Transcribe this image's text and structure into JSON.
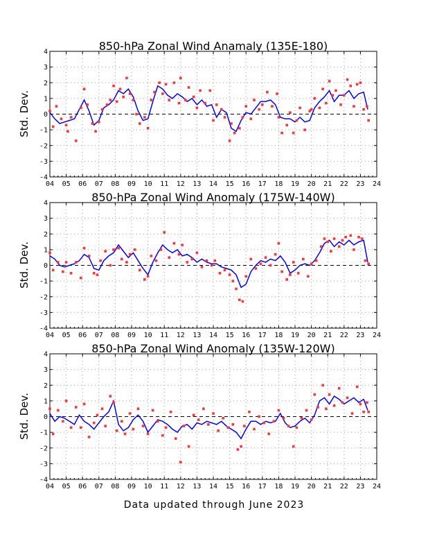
{
  "footer": "Data updated through June 2023",
  "colors": {
    "line": "#0000ff",
    "points": "#ff3333",
    "grid": "#999999"
  },
  "chart_data": [
    {
      "type": "line",
      "title": "850-hPa Zonal Wind Anamaly (135E-180)",
      "ylabel": "Std. Dev.",
      "xlim": [
        2004,
        2024
      ],
      "ylim": [
        -4,
        4
      ],
      "xticks": [
        "04",
        "05",
        "06",
        "07",
        "08",
        "09",
        "10",
        "11",
        "12",
        "13",
        "14",
        "15",
        "16",
        "17",
        "18",
        "19",
        "20",
        "21",
        "22",
        "23",
        "24"
      ],
      "yticks": [
        -4,
        -3,
        -2,
        -1,
        0,
        1,
        2,
        3,
        4
      ],
      "grid": true,
      "series": [
        {
          "style": "line",
          "x": [
            2004.0,
            2004.3,
            2004.6,
            2004.9,
            2005.2,
            2005.5,
            2005.8,
            2006.1,
            2006.4,
            2006.7,
            2007.0,
            2007.3,
            2007.6,
            2007.9,
            2008.2,
            2008.5,
            2008.8,
            2009.1,
            2009.4,
            2009.7,
            2010.0,
            2010.3,
            2010.6,
            2010.9,
            2011.2,
            2011.5,
            2011.8,
            2012.1,
            2012.4,
            2012.7,
            2013.0,
            2013.3,
            2013.6,
            2013.9,
            2014.2,
            2014.5,
            2014.8,
            2015.1,
            2015.4,
            2015.7,
            2016.0,
            2016.3,
            2016.6,
            2016.9,
            2017.2,
            2017.5,
            2017.8,
            2018.1,
            2018.4,
            2018.7,
            2019.0,
            2019.3,
            2019.6,
            2019.9,
            2020.2,
            2020.5,
            2020.8,
            2021.1,
            2021.4,
            2021.7,
            2022.0,
            2022.3,
            2022.6,
            2022.9,
            2023.2,
            2023.45
          ],
          "y": [
            0.1,
            -0.3,
            -0.6,
            -0.5,
            -0.4,
            -0.3,
            0.3,
            0.9,
            0.2,
            -0.7,
            -0.4,
            0.4,
            0.6,
            0.9,
            1.5,
            1.3,
            1.6,
            1.1,
            0.2,
            -0.4,
            -0.3,
            0.8,
            1.8,
            1.6,
            1.2,
            1.0,
            1.3,
            1.1,
            0.8,
            1.0,
            0.6,
            0.9,
            0.5,
            0.6,
            -0.2,
            0.3,
            0.1,
            -0.9,
            -1.1,
            -0.4,
            0.1,
            0.0,
            0.4,
            0.8,
            0.8,
            0.9,
            0.6,
            -0.2,
            -0.3,
            -0.3,
            -0.5,
            -0.2,
            -0.5,
            -0.4,
            0.4,
            0.8,
            1.1,
            1.5,
            0.8,
            1.2,
            1.2,
            1.5,
            1.0,
            1.3,
            1.4,
            0.3
          ]
        },
        {
          "style": "points",
          "x": [
            2004.0,
            2004.2,
            2004.4,
            2004.7,
            2005.0,
            2005.1,
            2005.3,
            2005.6,
            2005.9,
            2006.1,
            2006.3,
            2006.6,
            2006.8,
            2007.0,
            2007.2,
            2007.5,
            2007.7,
            2007.9,
            2008.1,
            2008.3,
            2008.5,
            2008.7,
            2008.9,
            2009.1,
            2009.3,
            2009.5,
            2009.8,
            2010.0,
            2010.2,
            2010.4,
            2010.7,
            2010.9,
            2011.1,
            2011.3,
            2011.6,
            2011.9,
            2012.0,
            2012.3,
            2012.5,
            2012.8,
            2013.0,
            2013.2,
            2013.5,
            2013.8,
            2014.0,
            2014.2,
            2014.5,
            2014.7,
            2015.0,
            2015.1,
            2015.3,
            2015.6,
            2015.8,
            2016.0,
            2016.3,
            2016.5,
            2016.8,
            2017.0,
            2017.3,
            2017.6,
            2017.9,
            2018.0,
            2018.2,
            2018.5,
            2018.7,
            2018.9,
            2019.1,
            2019.3,
            2019.6,
            2019.9,
            2020.0,
            2020.2,
            2020.5,
            2020.7,
            2020.9,
            2021.1,
            2021.3,
            2021.5,
            2021.8,
            2022.0,
            2022.2,
            2022.4,
            2022.6,
            2022.8,
            2023.0,
            2023.2,
            2023.4,
            2023.5
          ],
          "y": [
            0.2,
            -0.8,
            0.5,
            -0.3,
            -0.7,
            -1.1,
            -0.2,
            -1.7,
            0.4,
            1.6,
            0.6,
            -0.6,
            -1.1,
            -0.5,
            0.3,
            0.6,
            0.9,
            1.8,
            0.8,
            1.6,
            1.1,
            2.3,
            1.3,
            0.9,
            0.0,
            -0.6,
            -0.2,
            -0.9,
            0.9,
            1.4,
            2.0,
            1.3,
            1.9,
            0.9,
            2.0,
            0.7,
            2.3,
            0.9,
            1.7,
            1.1,
            0.4,
            1.5,
            0.7,
            1.5,
            -0.4,
            0.6,
            0.3,
            -0.2,
            -1.7,
            -0.6,
            -1.2,
            -0.9,
            -0.2,
            0.5,
            -0.3,
            0.9,
            0.3,
            0.6,
            1.4,
            0.5,
            1.3,
            -0.2,
            -1.2,
            -0.7,
            0.1,
            -1.2,
            -0.4,
            0.4,
            -1.0,
            0.2,
            0.3,
            1.0,
            0.4,
            1.6,
            0.7,
            2.1,
            1.2,
            1.5,
            0.6,
            1.2,
            2.2,
            1.8,
            0.5,
            1.9,
            2.0,
            0.3,
            0.5,
            -0.4
          ]
        }
      ]
    },
    {
      "type": "line",
      "title": "850-hPa Zonal Wind Anomaly (175W-140W)",
      "ylabel": "Std. Dev.",
      "xlim": [
        2004,
        2024
      ],
      "ylim": [
        -4,
        4
      ],
      "xticks": [
        "04",
        "05",
        "06",
        "07",
        "08",
        "09",
        "10",
        "11",
        "12",
        "13",
        "14",
        "15",
        "16",
        "17",
        "18",
        "19",
        "20",
        "21",
        "22",
        "23",
        "24"
      ],
      "yticks": [
        -4,
        -3,
        -2,
        -1,
        0,
        1,
        2,
        3,
        4
      ],
      "grid": true,
      "series": [
        {
          "style": "line",
          "x": [
            2004.0,
            2004.3,
            2004.6,
            2004.9,
            2005.2,
            2005.5,
            2005.8,
            2006.1,
            2006.4,
            2006.7,
            2007.0,
            2007.3,
            2007.6,
            2007.9,
            2008.2,
            2008.5,
            2008.8,
            2009.1,
            2009.4,
            2009.7,
            2010.0,
            2010.3,
            2010.6,
            2010.9,
            2011.2,
            2011.5,
            2011.8,
            2012.1,
            2012.4,
            2012.7,
            2013.0,
            2013.3,
            2013.6,
            2013.9,
            2014.2,
            2014.5,
            2014.8,
            2015.1,
            2015.4,
            2015.7,
            2016.0,
            2016.3,
            2016.6,
            2016.9,
            2017.2,
            2017.5,
            2017.8,
            2018.1,
            2018.4,
            2018.7,
            2019.0,
            2019.3,
            2019.6,
            2019.9,
            2020.2,
            2020.5,
            2020.8,
            2021.1,
            2021.4,
            2021.7,
            2022.0,
            2022.3,
            2022.6,
            2022.9,
            2023.2,
            2023.45
          ],
          "y": [
            0.6,
            0.4,
            0.0,
            -0.1,
            0.0,
            0.1,
            0.3,
            0.7,
            0.5,
            -0.2,
            -0.3,
            0.3,
            0.6,
            0.8,
            1.3,
            0.9,
            0.5,
            0.8,
            0.3,
            -0.2,
            -0.6,
            0.2,
            0.8,
            1.3,
            1.0,
            0.8,
            1.0,
            0.6,
            0.7,
            0.5,
            0.2,
            0.4,
            0.2,
            0.1,
            0.1,
            -0.1,
            -0.2,
            -0.3,
            -0.6,
            -1.4,
            -1.2,
            -0.4,
            0.0,
            0.3,
            0.2,
            0.4,
            0.3,
            0.6,
            0.2,
            -0.5,
            -0.3,
            0.0,
            0.1,
            0.0,
            0.3,
            0.8,
            1.4,
            1.6,
            1.2,
            1.5,
            1.3,
            1.6,
            1.3,
            1.5,
            1.6,
            0.2
          ]
        },
        {
          "style": "points",
          "x": [
            2004.0,
            2004.2,
            2004.5,
            2004.8,
            2005.0,
            2005.3,
            2005.6,
            2005.9,
            2006.1,
            2006.4,
            2006.7,
            2006.9,
            2007.1,
            2007.4,
            2007.7,
            2007.9,
            2008.2,
            2008.4,
            2008.7,
            2008.9,
            2009.2,
            2009.5,
            2009.8,
            2010.0,
            2010.2,
            2010.5,
            2010.8,
            2011.0,
            2011.3,
            2011.6,
            2011.9,
            2012.1,
            2012.4,
            2012.7,
            2013.0,
            2013.3,
            2013.6,
            2013.9,
            2014.1,
            2014.4,
            2014.7,
            2015.0,
            2015.2,
            2015.4,
            2015.6,
            2015.8,
            2016.0,
            2016.3,
            2016.6,
            2016.9,
            2017.2,
            2017.5,
            2017.8,
            2018.0,
            2018.2,
            2018.5,
            2018.7,
            2018.9,
            2019.2,
            2019.5,
            2019.8,
            2020.0,
            2020.3,
            2020.6,
            2020.8,
            2021.0,
            2021.2,
            2021.4,
            2021.7,
            2021.9,
            2022.1,
            2022.4,
            2022.6,
            2022.9,
            2023.1,
            2023.3,
            2023.5
          ],
          "y": [
            0.8,
            -0.3,
            0.2,
            -0.4,
            0.2,
            -0.5,
            0.2,
            -0.8,
            1.1,
            0.6,
            -0.5,
            -0.6,
            0.3,
            0.9,
            0.0,
            1.0,
            1.1,
            0.4,
            0.2,
            0.7,
            1.0,
            -0.3,
            -0.9,
            -0.7,
            0.6,
            0.3,
            1.0,
            2.1,
            0.5,
            1.4,
            0.7,
            1.3,
            0.2,
            0.4,
            0.8,
            -0.1,
            0.3,
            0.0,
            0.3,
            -0.5,
            -0.3,
            -0.6,
            -1.0,
            -1.5,
            -2.2,
            -2.3,
            -0.7,
            0.4,
            -0.2,
            0.1,
            0.5,
            0.0,
            0.7,
            1.4,
            -0.4,
            -0.9,
            -0.6,
            0.2,
            -0.5,
            0.4,
            -0.7,
            0.1,
            0.3,
            1.2,
            1.7,
            1.5,
            0.9,
            1.7,
            1.2,
            1.6,
            1.8,
            1.9,
            1.0,
            1.8,
            1.7,
            0.3,
            0.1
          ]
        }
      ]
    },
    {
      "type": "line",
      "title": "850-hPa Zonal Wind Anomaly (135W-120W)",
      "ylabel": "Std. Dev.",
      "xlim": [
        2004,
        2024
      ],
      "ylim": [
        -4,
        4
      ],
      "xticks": [
        "04",
        "05",
        "06",
        "07",
        "08",
        "09",
        "10",
        "11",
        "12",
        "13",
        "14",
        "15",
        "16",
        "17",
        "18",
        "19",
        "20",
        "21",
        "22",
        "23",
        "24"
      ],
      "yticks": [
        -4,
        -3,
        -2,
        -1,
        0,
        1,
        2,
        3,
        4
      ],
      "grid": true,
      "series": [
        {
          "style": "line",
          "x": [
            2004.0,
            2004.3,
            2004.6,
            2004.9,
            2005.2,
            2005.5,
            2005.8,
            2006.1,
            2006.4,
            2006.7,
            2007.0,
            2007.3,
            2007.6,
            2007.9,
            2008.2,
            2008.5,
            2008.8,
            2009.1,
            2009.4,
            2009.7,
            2010.0,
            2010.3,
            2010.6,
            2010.9,
            2011.2,
            2011.5,
            2011.8,
            2012.1,
            2012.4,
            2012.7,
            2013.0,
            2013.3,
            2013.6,
            2013.9,
            2014.2,
            2014.5,
            2014.8,
            2015.1,
            2015.4,
            2015.7,
            2016.0,
            2016.3,
            2016.6,
            2016.9,
            2017.2,
            2017.5,
            2017.8,
            2018.1,
            2018.4,
            2018.7,
            2019.0,
            2019.3,
            2019.6,
            2019.9,
            2020.2,
            2020.5,
            2020.8,
            2021.1,
            2021.4,
            2021.7,
            2022.0,
            2022.3,
            2022.6,
            2022.9,
            2023.2,
            2023.45
          ],
          "y": [
            0.2,
            -0.3,
            0.0,
            -0.1,
            -0.3,
            -0.5,
            0.1,
            -0.3,
            -0.5,
            -0.8,
            -0.4,
            0.0,
            0.3,
            1.0,
            -0.5,
            -0.9,
            -0.7,
            -0.2,
            0.1,
            -0.3,
            -1.0,
            -0.6,
            -0.2,
            -0.3,
            -0.5,
            -0.8,
            -1.0,
            -0.6,
            -0.5,
            -0.8,
            -0.4,
            -0.5,
            -0.3,
            -0.4,
            -0.5,
            -0.3,
            -0.6,
            -0.8,
            -1.0,
            -1.4,
            -0.8,
            -0.3,
            -0.3,
            -0.5,
            -0.3,
            -0.4,
            -0.3,
            0.2,
            -0.4,
            -0.7,
            -0.6,
            -0.3,
            -0.1,
            -0.4,
            0.1,
            1.0,
            1.2,
            0.8,
            1.3,
            1.1,
            0.8,
            1.0,
            1.2,
            0.9,
            1.1,
            0.4
          ]
        },
        {
          "style": "points",
          "x": [
            2004.0,
            2004.2,
            2004.5,
            2004.8,
            2005.0,
            2005.3,
            2005.6,
            2005.9,
            2006.1,
            2006.4,
            2006.7,
            2006.9,
            2007.2,
            2007.4,
            2007.7,
            2007.9,
            2008.1,
            2008.4,
            2008.6,
            2008.9,
            2009.1,
            2009.4,
            2009.7,
            2010.0,
            2010.3,
            2010.6,
            2010.9,
            2011.1,
            2011.4,
            2011.7,
            2012.0,
            2012.2,
            2012.5,
            2012.8,
            2013.1,
            2013.4,
            2013.7,
            2014.0,
            2014.3,
            2014.6,
            2014.9,
            2015.2,
            2015.5,
            2015.7,
            2015.9,
            2016.2,
            2016.5,
            2016.8,
            2017.1,
            2017.4,
            2017.7,
            2018.0,
            2018.3,
            2018.6,
            2018.9,
            2019.1,
            2019.4,
            2019.7,
            2020.0,
            2020.2,
            2020.4,
            2020.7,
            2020.9,
            2021.1,
            2021.4,
            2021.7,
            2021.9,
            2022.2,
            2022.5,
            2022.8,
            2023.0,
            2023.2,
            2023.4,
            2023.5
          ],
          "y": [
            0.5,
            -1.1,
            0.4,
            -0.3,
            1.0,
            -0.7,
            0.6,
            -0.7,
            0.8,
            -1.3,
            -0.4,
            0.1,
            0.5,
            -0.6,
            1.3,
            0.9,
            -0.9,
            -0.3,
            -1.1,
            0.2,
            -0.8,
            0.5,
            -0.6,
            -1.1,
            0.4,
            -0.3,
            -1.2,
            -0.7,
            0.3,
            -1.4,
            -2.9,
            -0.6,
            -1.9,
            0.1,
            -0.2,
            0.5,
            -0.5,
            0.2,
            -0.9,
            -0.1,
            -0.7,
            -0.5,
            -2.1,
            -1.9,
            -0.6,
            0.3,
            -0.8,
            0.0,
            -0.4,
            -1.1,
            -0.3,
            0.4,
            -0.1,
            -0.6,
            -1.9,
            -0.7,
            -0.1,
            0.4,
            -0.2,
            1.4,
            0.6,
            2.0,
            0.5,
            1.4,
            0.7,
            1.8,
            0.9,
            1.2,
            0.2,
            1.9,
            0.8,
            0.3,
            0.9,
            0.3
          ]
        }
      ]
    }
  ]
}
